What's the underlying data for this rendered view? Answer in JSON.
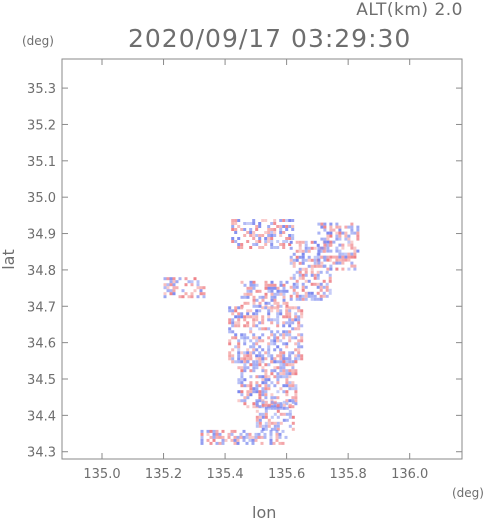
{
  "header": {
    "alt_label": "ALT(km) 2.0",
    "timestamp": "2020/09/17 03:29:30"
  },
  "axes": {
    "x_unit": "(deg)",
    "y_unit": "(deg)",
    "x_title": "lon",
    "y_title": "lat"
  },
  "chart_data": {
    "type": "heatmap",
    "xlabel": "lon",
    "ylabel": "lat",
    "xlim": [
      134.87,
      136.17
    ],
    "ylim": [
      34.28,
      35.38
    ],
    "x_ticks": [
      "135.0",
      "135.2",
      "135.4",
      "135.6",
      "135.8",
      "136.0"
    ],
    "y_ticks": [
      "34.3",
      "34.4",
      "34.5",
      "34.6",
      "34.7",
      "34.8",
      "34.9",
      "35.0",
      "35.1",
      "35.2",
      "35.3"
    ],
    "grid": false,
    "colors": {
      "positive": "#f4a6a6",
      "negative": "#9aa6f2",
      "positive_strong": "#ee7f86",
      "negative_strong": "#7b87ee"
    },
    "echo_regions": [
      {
        "lon": [
          135.2,
          135.33
        ],
        "lat": [
          34.73,
          34.78
        ]
      },
      {
        "lon": [
          135.42,
          135.62
        ],
        "lat": [
          34.86,
          34.94
        ]
      },
      {
        "lon": [
          135.61,
          135.74
        ],
        "lat": [
          34.72,
          34.88
        ]
      },
      {
        "lon": [
          135.7,
          135.83
        ],
        "lat": [
          34.8,
          34.93
        ]
      },
      {
        "lon": [
          135.45,
          135.6
        ],
        "lat": [
          34.7,
          34.77
        ]
      },
      {
        "lon": [
          135.41,
          135.65
        ],
        "lat": [
          34.55,
          34.7
        ]
      },
      {
        "lon": [
          135.44,
          135.63
        ],
        "lat": [
          34.42,
          34.56
        ]
      },
      {
        "lon": [
          135.5,
          135.62
        ],
        "lat": [
          34.36,
          34.44
        ]
      },
      {
        "lon": [
          135.32,
          135.6
        ],
        "lat": [
          34.32,
          34.36
        ]
      }
    ]
  }
}
